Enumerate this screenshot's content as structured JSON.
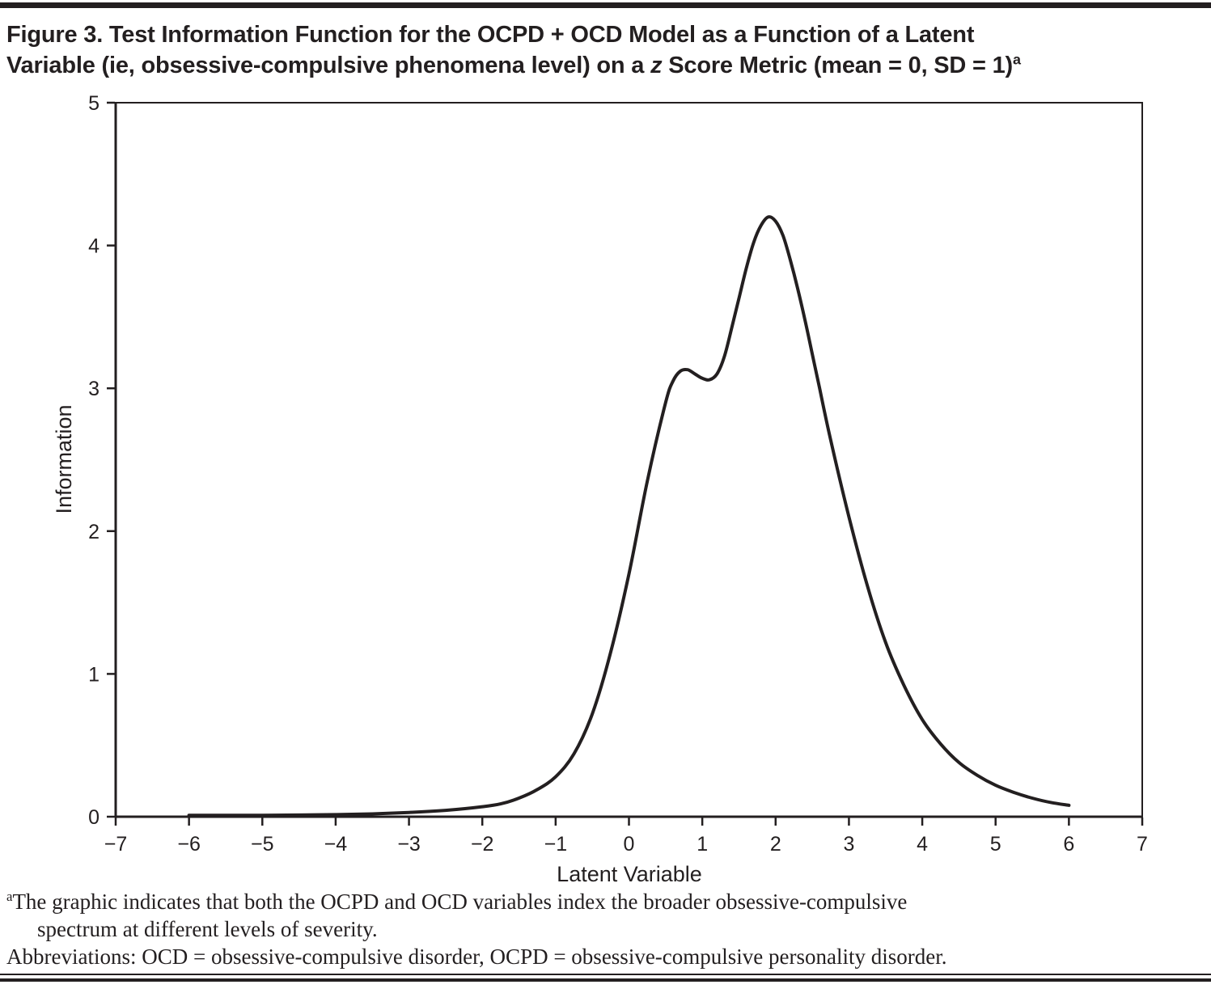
{
  "colors": {
    "ink": "#231f20",
    "background": "#ffffff"
  },
  "title": {
    "line1": "Figure 3. Test Information Function for the OCPD + OCD Model as a Function of a Latent",
    "line2_pre": "Variable (ie, obsessive-compulsive phenomena level) on a ",
    "line2_italic": "z",
    "line2_post": " Score Metric (mean = 0, SD = 1)",
    "line2_sup": "a"
  },
  "footnotes": {
    "note_a_sup": "a",
    "note_a_line1": "The graphic indicates that both the OCPD and OCD variables index the broader obsessive-compulsive",
    "note_a_line2": "spectrum at different levels of severity.",
    "abbreviations": "Abbreviations: OCD = obsessive-compulsive disorder, OCPD = obsessive-compulsive personality disorder."
  },
  "chart_data": {
    "type": "line",
    "title": "Test Information Function for the OCPD + OCD Model",
    "xlabel": "Latent Variable",
    "ylabel": "Information",
    "xlim": [
      -7,
      7
    ],
    "ylim": [
      0,
      5
    ],
    "grid": false,
    "legend": "none",
    "x_tick_values": [
      -7,
      -6,
      -5,
      -4,
      -3,
      -2,
      -1,
      0,
      1,
      2,
      3,
      4,
      5,
      6,
      7
    ],
    "x_tick_labels": [
      "−7",
      "−6",
      "−5",
      "−4",
      "−3",
      "−2",
      "−1",
      "0",
      "1",
      "2",
      "3",
      "4",
      "5",
      "6",
      "7"
    ],
    "y_tick_values": [
      0,
      1,
      2,
      3,
      4,
      5
    ],
    "y_tick_labels": [
      "0",
      "1",
      "2",
      "3",
      "4",
      "5"
    ],
    "line_color": "#231f20",
    "line_width": 4,
    "series": [
      {
        "name": "Test information",
        "x": [
          -6,
          -5.5,
          -5,
          -4.5,
          -4,
          -3.5,
          -3,
          -2.5,
          -2,
          -1.75,
          -1.5,
          -1.25,
          -1,
          -0.75,
          -0.5,
          -0.25,
          0,
          0.25,
          0.5,
          0.6,
          0.7,
          0.8,
          0.9,
          1.0,
          1.1,
          1.2,
          1.3,
          1.4,
          1.5,
          1.6,
          1.7,
          1.8,
          1.9,
          2.0,
          2.1,
          2.2,
          2.3,
          2.4,
          2.5,
          2.6,
          2.75,
          3.0,
          3.25,
          3.5,
          3.75,
          4.0,
          4.25,
          4.5,
          4.75,
          5.0,
          5.25,
          5.5,
          5.75,
          6.0
        ],
        "y": [
          0.01,
          0.01,
          0.01,
          0.012,
          0.015,
          0.02,
          0.03,
          0.045,
          0.07,
          0.09,
          0.13,
          0.19,
          0.28,
          0.44,
          0.72,
          1.15,
          1.7,
          2.35,
          2.9,
          3.05,
          3.12,
          3.13,
          3.1,
          3.07,
          3.06,
          3.1,
          3.22,
          3.42,
          3.63,
          3.84,
          4.02,
          4.14,
          4.2,
          4.17,
          4.07,
          3.9,
          3.7,
          3.48,
          3.24,
          3.0,
          2.64,
          2.1,
          1.62,
          1.22,
          0.92,
          0.68,
          0.51,
          0.38,
          0.29,
          0.22,
          0.17,
          0.13,
          0.1,
          0.08
        ]
      }
    ],
    "annotations": {
      "local_peak": {
        "x": 0.7,
        "y": 3.13
      },
      "global_peak": {
        "x": 1.9,
        "y": 4.2
      }
    }
  }
}
